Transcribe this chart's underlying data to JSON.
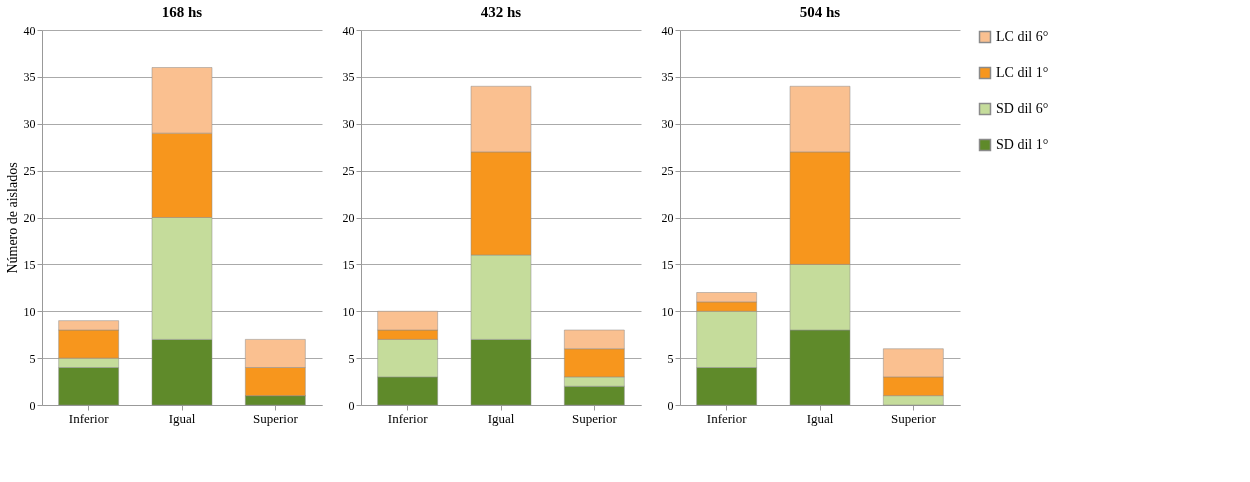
{
  "chart_data": [
    {
      "type": "bar",
      "title": "168 hs",
      "ylabel": "Número de aislados",
      "categories": [
        "Inferior",
        "Igual",
        "Superior"
      ],
      "stacked": true,
      "ylim": [
        0,
        40
      ],
      "yticks": [
        0,
        5,
        10,
        15,
        20,
        25,
        30,
        35,
        40
      ],
      "grid": "y",
      "series": [
        {
          "color": "#5f8a2a",
          "values": [
            4,
            7,
            1
          ]
        },
        {
          "color": "#c5dc9b",
          "values": [
            1,
            13,
            0
          ]
        },
        {
          "color": "#f7961d",
          "values": [
            3,
            9,
            3
          ]
        },
        {
          "color": "#fac090",
          "values": [
            1,
            7,
            3
          ]
        }
      ]
    },
    {
      "type": "bar",
      "title": "432 hs",
      "categories": [
        "Inferior",
        "Igual",
        "Superior"
      ],
      "stacked": true,
      "ylim": [
        0,
        40
      ],
      "yticks": [
        0,
        5,
        10,
        15,
        20,
        25,
        30,
        35,
        40
      ],
      "grid": "y",
      "series": [
        {
          "color": "#5f8a2a",
          "values": [
            3,
            7,
            2
          ]
        },
        {
          "color": "#c5dc9b",
          "values": [
            4,
            9,
            1
          ]
        },
        {
          "color": "#f7961d",
          "values": [
            1,
            11,
            3
          ]
        },
        {
          "color": "#fac090",
          "values": [
            2,
            7,
            2
          ]
        }
      ]
    },
    {
      "type": "bar",
      "title": "504 hs",
      "categories": [
        "Inferior",
        "Igual",
        "Superior"
      ],
      "stacked": true,
      "ylim": [
        0,
        40
      ],
      "yticks": [
        0,
        5,
        10,
        15,
        20,
        25,
        30,
        35,
        40
      ],
      "grid": "y",
      "legend": "right",
      "series": [
        {
          "name": "SD dil 1°",
          "color": "#5f8a2a",
          "values": [
            4,
            8,
            0
          ]
        },
        {
          "name": "SD dil 6°",
          "color": "#c5dc9b",
          "values": [
            6,
            7,
            1
          ]
        },
        {
          "name": "LC dil 1°",
          "color": "#f7961d",
          "values": [
            1,
            12,
            2
          ]
        },
        {
          "name": "LC dil 6°",
          "color": "#fac090",
          "values": [
            1,
            7,
            3
          ]
        }
      ]
    }
  ]
}
